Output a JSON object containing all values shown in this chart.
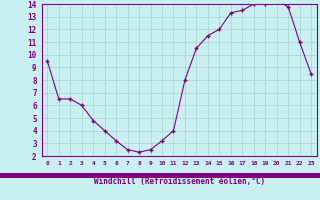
{
  "hours": [
    0,
    1,
    2,
    3,
    4,
    5,
    6,
    7,
    8,
    9,
    10,
    11,
    12,
    13,
    14,
    15,
    16,
    17,
    18,
    19,
    20,
    21,
    22,
    23
  ],
  "values": [
    9.5,
    6.5,
    6.5,
    6.0,
    4.8,
    4.0,
    3.2,
    2.5,
    2.3,
    2.5,
    3.2,
    4.0,
    8.0,
    10.5,
    11.5,
    12.0,
    13.3,
    13.5,
    14.0,
    14.0,
    14.2,
    13.8,
    11.0,
    8.5
  ],
  "ylim": [
    2,
    14
  ],
  "yticks": [
    2,
    3,
    4,
    5,
    6,
    7,
    8,
    9,
    10,
    11,
    12,
    13,
    14
  ],
  "xlabel": "Windchill (Refroidissement éolien,°C)",
  "line_color": "#800080",
  "marker": "+",
  "marker_color": "#800080",
  "bg_color": "#c8f0f0",
  "grid_color": "#a0c8c8",
  "axis_label_color": "#800080",
  "tick_label_color": "#800080",
  "spine_color": "#800080",
  "bottom_bar_color": "#800080"
}
